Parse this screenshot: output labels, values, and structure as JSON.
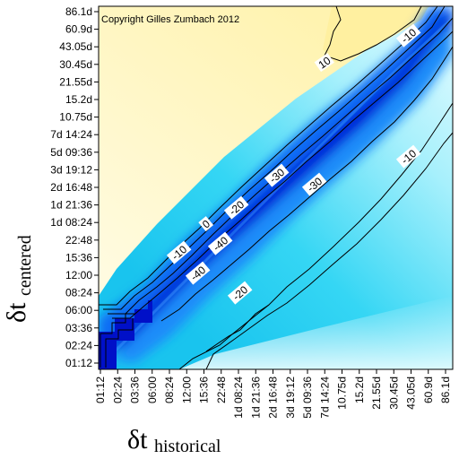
{
  "chart_data": {
    "type": "heatmap",
    "copyright": "Copyright Gilles Zumbach 2012",
    "x_label_main": "δt",
    "x_label_sub": "historical",
    "y_label_main": "δt",
    "y_label_sub": "centered",
    "x_ticks": [
      "01:12",
      "02:24",
      "03:36",
      "06:00",
      "08:24",
      "12:00",
      "15:36",
      "22:48",
      "1d 08:24",
      "1d 21:36",
      "2d 16:48",
      "3d 19:12",
      "5d 09:36",
      "7d 14:24",
      "10.75d",
      "15.2d",
      "21.55d",
      "30.45d",
      "43.05d",
      "60.9d",
      "86.1d"
    ],
    "y_ticks": [
      "86.1d",
      "60.9d",
      "43.05d",
      "30.45d",
      "21.55d",
      "15.2d",
      "10.75d",
      "7d 14:24",
      "5d 09:36",
      "3d 19:12",
      "2d 16:48",
      "1d 21:36",
      "1d 08:24",
      "22:48",
      "15:36",
      "12:00",
      "08:24",
      "06:00",
      "03:36",
      "02:24",
      "01:12"
    ],
    "colors": {
      "yellow": "#fff1a6",
      "pale_yellow": "#fffde8",
      "blue_dark": "#0010d8",
      "blue_mid": "#0a66ff",
      "cyan": "#12c8f0",
      "pale_cyan": "#e2fbff"
    },
    "contour_levels": [
      10,
      0,
      -10,
      -20,
      -30,
      -40
    ],
    "contour_labels": [
      {
        "text": "10",
        "at": "top-right yellow region"
      },
      {
        "text": "-10",
        "at": "top-right corner"
      },
      {
        "text": "0",
        "at": "upper-left of diagonal"
      },
      {
        "text": "-10",
        "at": "upper-left of diagonal"
      },
      {
        "text": "-20",
        "at": "upper-left of diagonal"
      },
      {
        "text": "-30",
        "at": "diagonal"
      },
      {
        "text": "-40",
        "at": "diagonal"
      },
      {
        "text": "-40",
        "at": "diagonal"
      },
      {
        "text": "-30",
        "at": "below diagonal"
      },
      {
        "text": "-20",
        "at": "below diagonal"
      },
      {
        "text": "-10",
        "at": "below diagonal"
      }
    ]
  }
}
